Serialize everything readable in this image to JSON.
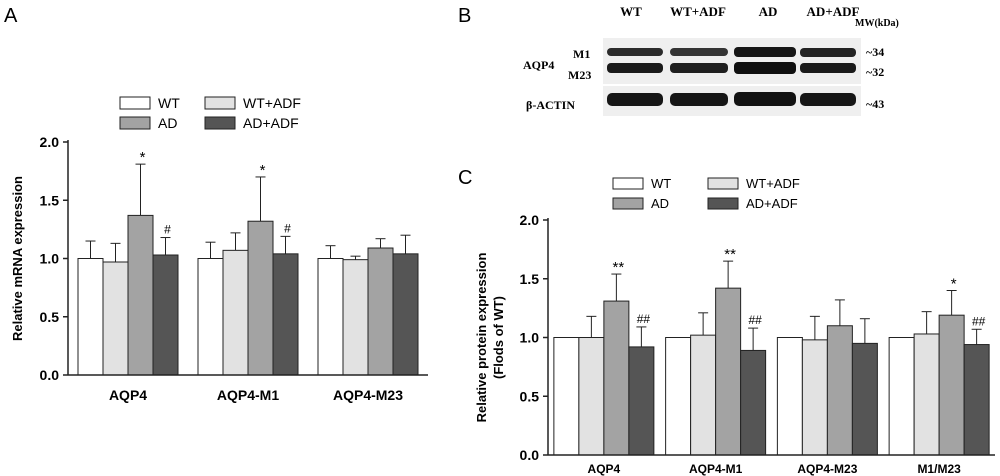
{
  "panels": [
    {
      "id": "A",
      "letter": "A"
    },
    {
      "id": "B",
      "letter": "B"
    },
    {
      "id": "C",
      "letter": "C"
    }
  ],
  "legend_entries": [
    {
      "name": "WT",
      "color": "#ffffff"
    },
    {
      "name": "WT+ADF",
      "color": "#e2e2e2"
    },
    {
      "name": "AD",
      "color": "#a3a3a3"
    },
    {
      "name": "AD+ADF",
      "color": "#555555"
    }
  ],
  "blot": {
    "lanes": [
      "WT",
      "WT+ADF",
      "AD",
      "AD+ADF"
    ],
    "mw_label": "MW(kDa)",
    "protein_label": "AQP4",
    "isoform_labels": [
      "M1",
      "M23"
    ],
    "loading_label": "β-ACTIN",
    "mw_markers": [
      "~34",
      "~32",
      "~43"
    ]
  },
  "chart_data": [
    {
      "type": "bar",
      "panel": "A",
      "ylabel": "Relative mRNA expression",
      "ylim": [
        0,
        2.0
      ],
      "yticks": [
        "0.0",
        "0.5",
        "1.0",
        "1.5",
        "2.0"
      ],
      "yticks_values": [
        0,
        0.5,
        1.0,
        1.5,
        2.0
      ],
      "categories": [
        "AQP4",
        "AQP4-M1",
        "AQP4-M23"
      ],
      "legend": "top",
      "series": [
        {
          "name": "WT",
          "color": "#ffffff",
          "values": [
            1.0,
            1.0,
            1.0
          ],
          "errors": [
            0.15,
            0.14,
            0.11
          ],
          "annotations": [
            "",
            "",
            ""
          ]
        },
        {
          "name": "WT+ADF",
          "color": "#e2e2e2",
          "values": [
            0.97,
            1.07,
            0.99
          ],
          "errors": [
            0.16,
            0.15,
            0.03
          ],
          "annotations": [
            "",
            "",
            ""
          ]
        },
        {
          "name": "AD",
          "color": "#a3a3a3",
          "values": [
            1.37,
            1.32,
            1.09
          ],
          "errors": [
            0.44,
            0.38,
            0.08
          ],
          "annotations": [
            "*",
            "*",
            ""
          ]
        },
        {
          "name": "AD+ADF",
          "color": "#555555",
          "values": [
            1.03,
            1.04,
            1.04
          ],
          "errors": [
            0.15,
            0.15,
            0.16
          ],
          "annotations": [
            "#",
            "#",
            ""
          ]
        }
      ]
    },
    {
      "type": "bar",
      "panel": "C",
      "ylabel": "Relative protein expression",
      "ylabel2": "(Flods of WT)",
      "ylim": [
        0,
        2.0
      ],
      "yticks": [
        "0.0",
        "0.5",
        "1.0",
        "1.5",
        "2.0"
      ],
      "yticks_values": [
        0,
        0.5,
        1.0,
        1.5,
        2.0
      ],
      "categories": [
        "AQP4",
        "AQP4-M1",
        "AQP4-M23",
        "M1/M23"
      ],
      "legend": "top",
      "series": [
        {
          "name": "WT",
          "color": "#ffffff",
          "values": [
            1.0,
            1.0,
            1.0,
            1.0
          ],
          "errors": [
            0,
            0,
            0,
            0
          ],
          "annotations": [
            "",
            "",
            "",
            ""
          ]
        },
        {
          "name": "WT+ADF",
          "color": "#e2e2e2",
          "values": [
            1.0,
            1.02,
            0.98,
            1.03
          ],
          "errors": [
            0.18,
            0.19,
            0.2,
            0.19
          ],
          "annotations": [
            "",
            "",
            "",
            ""
          ]
        },
        {
          "name": "AD",
          "color": "#a3a3a3",
          "values": [
            1.31,
            1.42,
            1.1,
            1.19
          ],
          "errors": [
            0.23,
            0.23,
            0.22,
            0.21
          ],
          "annotations": [
            "**",
            "**",
            "",
            "*"
          ]
        },
        {
          "name": "AD+ADF",
          "color": "#555555",
          "values": [
            0.92,
            0.89,
            0.95,
            0.94
          ],
          "errors": [
            0.17,
            0.19,
            0.21,
            0.13
          ],
          "annotations": [
            "##",
            "##",
            "",
            "##"
          ]
        }
      ]
    }
  ]
}
